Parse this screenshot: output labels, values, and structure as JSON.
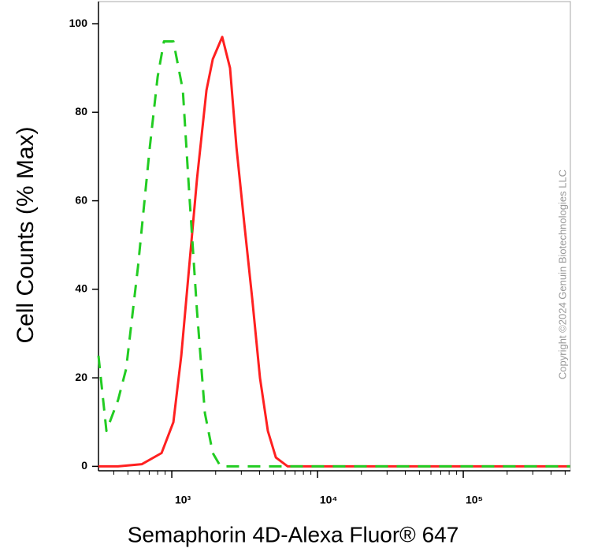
{
  "chart_data": {
    "type": "line",
    "x_label": "Semaphorin 4D-Alexa Fluor® 647",
    "y_label": "Cell Counts (% Max)",
    "watermark": "Copyright ©2024 Genuin Biotechnologies LLC",
    "x_scale": "log",
    "minor_ticks": true,
    "xlim": [
      314,
      543000
    ],
    "ylim": [
      -1,
      105
    ],
    "xticks": [
      {
        "value": 1000,
        "label": "10³"
      },
      {
        "value": 10000,
        "label": "10⁴"
      },
      {
        "value": 100000,
        "label": "10⁵"
      }
    ],
    "yticks": [
      0,
      20,
      40,
      60,
      80,
      100
    ],
    "series": [
      {
        "color": "#ff2020",
        "style": "solid",
        "x": [
          314,
          428,
          624,
          851,
          1025,
          1161,
          1315,
          1489,
          1730,
          1910,
          2220,
          2510,
          2780,
          3140,
          3560,
          4030,
          4560,
          5180,
          6240,
          540000
        ],
        "values": [
          0,
          0,
          0.5,
          3,
          10,
          25,
          45,
          65,
          85,
          92,
          97,
          90,
          72,
          55,
          38,
          20,
          8,
          2,
          0,
          0
        ]
      },
      {
        "color": "#22cc22",
        "style": "dashed",
        "x": [
          314,
          356,
          428,
          486,
          586,
          706,
          800,
          883,
          1025,
          1191,
          1315,
          1489,
          1687,
          1910,
          2160,
          540000
        ],
        "values": [
          25,
          8,
          15,
          22,
          45,
          72,
          88,
          96,
          96,
          85,
          62,
          35,
          12,
          3,
          0,
          0
        ]
      }
    ]
  }
}
